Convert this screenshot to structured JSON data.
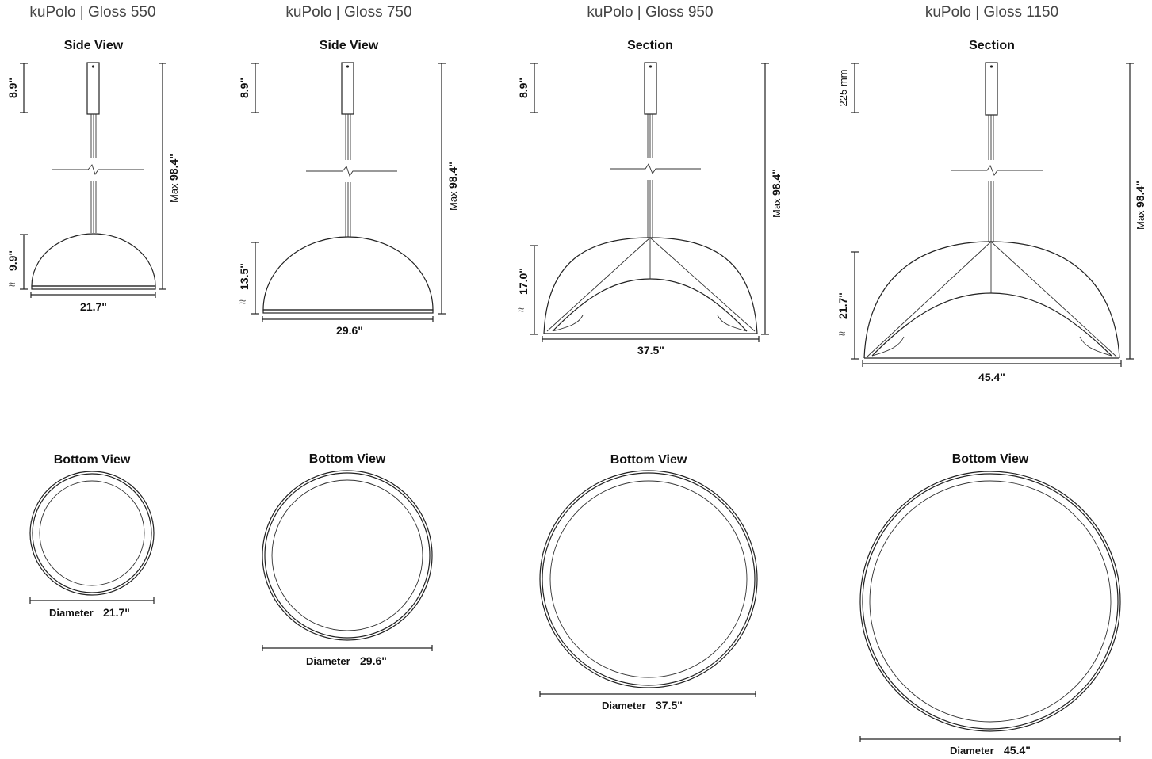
{
  "products": [
    {
      "title": "kuPolo | Gloss 550",
      "top_view_label": "Side View",
      "canopy_height": "8.9\"",
      "max_label": "Max",
      "max_height": "98.4\"",
      "shade_height": "9.9\"",
      "approx": "≈",
      "width": "21.7\"",
      "bottom_view_label": "Bottom View",
      "diameter_label": "Diameter",
      "diameter": "21.7\""
    },
    {
      "title": "kuPolo | Gloss 750",
      "top_view_label": "Side View",
      "canopy_height": "8.9\"",
      "max_label": "Max",
      "max_height": "98.4\"",
      "shade_height": "13.5\"",
      "approx": "≈",
      "width": "29.6\"",
      "bottom_view_label": "Bottom View",
      "diameter_label": "Diameter",
      "diameter": "29.6\""
    },
    {
      "title": "kuPolo | Gloss 950",
      "top_view_label": "Section",
      "canopy_height": "8.9\"",
      "max_label": "Max",
      "max_height": "98.4\"",
      "shade_height": "17.0\"",
      "approx": "≈",
      "width": "37.5\"",
      "bottom_view_label": "Bottom View",
      "diameter_label": "Diameter",
      "diameter": "37.5\""
    },
    {
      "title": "kuPolo | Gloss 1150",
      "top_view_label": "Section",
      "canopy_height": "225 mm",
      "max_label": "Max",
      "max_height": "98.4\"",
      "shade_height": "21.7\"",
      "approx": "≈",
      "width": "45.4\"",
      "bottom_view_label": "Bottom View",
      "diameter_label": "Diameter",
      "diameter": "45.4\""
    }
  ]
}
